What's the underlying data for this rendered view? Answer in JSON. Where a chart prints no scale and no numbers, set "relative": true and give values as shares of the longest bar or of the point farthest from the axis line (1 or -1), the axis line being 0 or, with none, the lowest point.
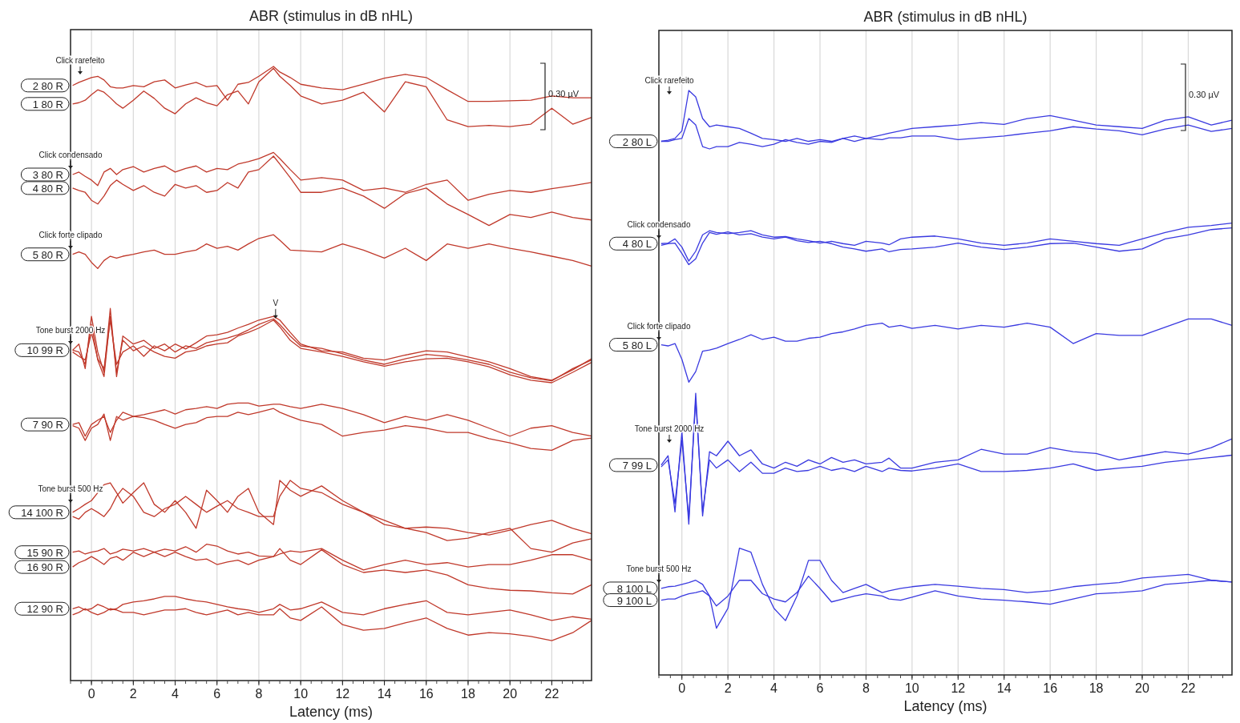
{
  "chart_data": [
    {
      "type": "line",
      "title": "ABR (stimulus in dB nHL)",
      "xlabel": "Latency (ms)",
      "relative": true,
      "grid": "x",
      "xlim": [
        -1,
        23.9
      ],
      "xticks": [
        0,
        2,
        4,
        6,
        8,
        10,
        12,
        14,
        16,
        18,
        20,
        22
      ],
      "x": [
        -0.9,
        -0.6,
        -0.3,
        0,
        0.3,
        0.6,
        0.9,
        1.2,
        1.5,
        2,
        2.5,
        3,
        3.5,
        4,
        4.5,
        5,
        5.5,
        6,
        6.5,
        7,
        7.5,
        8,
        8.7,
        9,
        9.5,
        10,
        11,
        12,
        13,
        14,
        15,
        16,
        17,
        18,
        19,
        20,
        21,
        22,
        23,
        23.9
      ],
      "series": [
        {
          "name": "2 80 R",
          "color": "#c0392b",
          "values": [
            0.969,
            0.974,
            0.978,
            0.982,
            0.984,
            0.978,
            0.967,
            0.965,
            0.965,
            0.969,
            0.967,
            0.975,
            0.978,
            0.965,
            0.97,
            0.974,
            0.967,
            0.969,
            0.945,
            0.971,
            0.974,
            0.984,
            1.0,
            0.991,
            0.982,
            0.971,
            0.965,
            0.962,
            0.971,
            0.981,
            0.987,
            0.982,
            0.962,
            0.943,
            0.943,
            0.944,
            0.945,
            0.952,
            0.949,
            0.949
          ]
        },
        {
          "name": "1 80 R",
          "color": "#c0392b",
          "values": [
            0.939,
            0.941,
            0.945,
            0.954,
            0.962,
            0.958,
            0.949,
            0.939,
            0.932,
            0.945,
            0.96,
            0.948,
            0.932,
            0.923,
            0.939,
            0.949,
            0.941,
            0.936,
            0.954,
            0.96,
            0.939,
            0.975,
            0.997,
            0.984,
            0.969,
            0.952,
            0.939,
            0.945,
            0.958,
            0.926,
            0.975,
            0.967,
            0.913,
            0.902,
            0.904,
            0.902,
            0.906,
            0.932,
            0.906,
            0.917
          ]
        },
        {
          "name": "3 80 R",
          "color": "#c0392b",
          "values": [
            0.824,
            0.828,
            0.821,
            0.815,
            0.806,
            0.828,
            0.834,
            0.824,
            0.832,
            0.837,
            0.828,
            0.834,
            0.838,
            0.828,
            0.834,
            0.838,
            0.828,
            0.834,
            0.832,
            0.841,
            0.845,
            0.85,
            0.86,
            0.85,
            0.832,
            0.815,
            0.819,
            0.815,
            0.798,
            0.802,
            0.795,
            0.808,
            0.815,
            0.782,
            0.792,
            0.798,
            0.795,
            0.801,
            0.806,
            0.811
          ]
        },
        {
          "name": "4 80 R",
          "color": "#c0392b",
          "values": [
            0.802,
            0.798,
            0.795,
            0.782,
            0.776,
            0.789,
            0.806,
            0.815,
            0.808,
            0.798,
            0.806,
            0.795,
            0.789,
            0.808,
            0.802,
            0.806,
            0.795,
            0.798,
            0.811,
            0.802,
            0.828,
            0.832,
            0.854,
            0.841,
            0.819,
            0.795,
            0.795,
            0.802,
            0.789,
            0.769,
            0.793,
            0.802,
            0.776,
            0.759,
            0.741,
            0.759,
            0.754,
            0.763,
            0.754,
            0.75
          ]
        },
        {
          "name": "5 80 R",
          "color": "#c0392b",
          "values": [
            0.694,
            0.698,
            0.694,
            0.681,
            0.671,
            0.684,
            0.691,
            0.688,
            0.691,
            0.694,
            0.698,
            0.701,
            0.694,
            0.694,
            0.698,
            0.701,
            0.711,
            0.704,
            0.707,
            0.701,
            0.711,
            0.72,
            0.726,
            0.717,
            0.701,
            0.7,
            0.698,
            0.711,
            0.701,
            0.688,
            0.704,
            0.684,
            0.711,
            0.704,
            0.711,
            0.704,
            0.698,
            0.691,
            0.684,
            0.675
          ]
        },
        {
          "name": "10 99 R",
          "color": "#c0392b",
          "values": [
            0.538,
            0.548,
            0.508,
            0.593,
            0.535,
            0.502,
            0.606,
            0.495,
            0.561,
            0.548,
            0.554,
            0.541,
            0.548,
            0.535,
            0.545,
            0.541,
            0.55,
            0.554,
            0.558,
            0.563,
            0.571,
            0.58,
            0.589,
            0.58,
            0.561,
            0.545,
            0.541,
            0.532,
            0.522,
            0.515,
            0.524,
            0.531,
            0.528,
            0.522,
            0.515,
            0.502,
            0.493,
            0.488,
            0.508,
            0.522
          ]
        },
        {
          "color": "#c0392b",
          "values": [
            0.538,
            0.535,
            0.515,
            0.58,
            0.522,
            0.495,
            0.593,
            0.502,
            0.554,
            0.537,
            0.545,
            0.535,
            0.528,
            0.525,
            0.535,
            0.538,
            0.545,
            0.548,
            0.55,
            0.561,
            0.567,
            0.574,
            0.587,
            0.576,
            0.554,
            0.541,
            0.535,
            0.528,
            0.519,
            0.512,
            0.519,
            0.524,
            0.525,
            0.519,
            0.511,
            0.498,
            0.489,
            0.485,
            0.502,
            0.518
          ]
        },
        {
          "color": "#c0392b",
          "values": [
            0.535,
            0.528,
            0.522,
            0.567,
            0.524,
            0.508,
            0.587,
            0.515,
            0.535,
            0.545,
            0.528,
            0.545,
            0.537,
            0.548,
            0.54,
            0.55,
            0.561,
            0.563,
            0.567,
            0.574,
            0.58,
            0.587,
            0.593,
            0.587,
            0.567,
            0.548,
            0.537,
            0.535,
            0.525,
            0.522,
            0.53,
            0.537,
            0.535,
            0.527,
            0.519,
            0.508,
            0.495,
            0.489,
            0.506,
            0.524
          ]
        },
        {
          "name": "7 90 R",
          "color": "#c0392b",
          "values": [
            0.417,
            0.42,
            0.398,
            0.417,
            0.424,
            0.43,
            0.404,
            0.424,
            0.437,
            0.43,
            0.433,
            0.437,
            0.441,
            0.434,
            0.441,
            0.443,
            0.446,
            0.443,
            0.45,
            0.452,
            0.452,
            0.447,
            0.45,
            0.45,
            0.446,
            0.443,
            0.45,
            0.443,
            0.433,
            0.42,
            0.43,
            0.424,
            0.433,
            0.424,
            0.411,
            0.398,
            0.411,
            0.415,
            0.404,
            0.398
          ]
        },
        {
          "color": "#c0392b",
          "values": [
            0.415,
            0.411,
            0.391,
            0.411,
            0.417,
            0.434,
            0.391,
            0.43,
            0.424,
            0.43,
            0.428,
            0.424,
            0.417,
            0.411,
            0.417,
            0.42,
            0.428,
            0.43,
            0.43,
            0.437,
            0.433,
            0.437,
            0.443,
            0.437,
            0.43,
            0.424,
            0.417,
            0.398,
            0.404,
            0.408,
            0.415,
            0.411,
            0.404,
            0.404,
            0.394,
            0.387,
            0.378,
            0.375,
            0.391,
            0.395
          ]
        },
        {
          "name": "14 100 R",
          "color": "#c0392b",
          "values": [
            0.274,
            0.28,
            0.287,
            0.293,
            0.306,
            0.319,
            0.322,
            0.306,
            0.289,
            0.306,
            0.322,
            0.287,
            0.274,
            0.293,
            0.274,
            0.248,
            0.31,
            0.293,
            0.274,
            0.3,
            0.313,
            0.274,
            0.254,
            0.326,
            0.31,
            0.3,
            0.317,
            0.293,
            0.274,
            0.261,
            0.248,
            0.25,
            0.248,
            0.241,
            0.237,
            0.245,
            0.254,
            0.261,
            0.248,
            0.239
          ]
        },
        {
          "color": "#c0392b",
          "values": [
            0.267,
            0.263,
            0.274,
            0.28,
            0.274,
            0.267,
            0.28,
            0.3,
            0.313,
            0.3,
            0.274,
            0.267,
            0.28,
            0.287,
            0.3,
            0.287,
            0.274,
            0.284,
            0.293,
            0.28,
            0.274,
            0.267,
            0.267,
            0.3,
            0.326,
            0.313,
            0.306,
            0.287,
            0.274,
            0.254,
            0.248,
            0.241,
            0.228,
            0.232,
            0.241,
            0.248,
            0.215,
            0.209,
            0.224,
            0.231
          ]
        },
        {
          "name": "15 90 R",
          "color": "#c0392b",
          "values": [
            0.209,
            0.211,
            0.206,
            0.209,
            0.211,
            0.215,
            0.206,
            0.209,
            0.214,
            0.211,
            0.215,
            0.209,
            0.214,
            0.211,
            0.218,
            0.209,
            0.222,
            0.219,
            0.211,
            0.206,
            0.209,
            0.203,
            0.202,
            0.206,
            0.211,
            0.209,
            0.215,
            0.196,
            0.18,
            0.189,
            0.196,
            0.189,
            0.192,
            0.185,
            0.189,
            0.189,
            0.196,
            0.205,
            0.205,
            0.196
          ]
        },
        {
          "name": "16 90 R",
          "color": "#c0392b",
          "values": [
            0.185,
            0.192,
            0.196,
            0.202,
            0.196,
            0.189,
            0.199,
            0.202,
            0.196,
            0.209,
            0.202,
            0.209,
            0.202,
            0.209,
            0.202,
            0.196,
            0.198,
            0.189,
            0.193,
            0.196,
            0.189,
            0.196,
            0.202,
            0.215,
            0.196,
            0.189,
            0.213,
            0.189,
            0.176,
            0.18,
            0.176,
            0.18,
            0.172,
            0.156,
            0.15,
            0.147,
            0.146,
            0.143,
            0.141,
            0.156
          ]
        },
        {
          "name": "12 90 R",
          "color": "#c0392b",
          "values": [
            0.117,
            0.12,
            0.115,
            0.117,
            0.124,
            0.12,
            0.115,
            0.117,
            0.124,
            0.128,
            0.13,
            0.133,
            0.137,
            0.137,
            0.133,
            0.13,
            0.128,
            0.124,
            0.12,
            0.117,
            0.115,
            0.111,
            0.117,
            0.124,
            0.115,
            0.117,
            0.128,
            0.111,
            0.107,
            0.117,
            0.124,
            0.13,
            0.111,
            0.107,
            0.111,
            0.115,
            0.107,
            0.098,
            0.104,
            0.1
          ]
        },
        {
          "color": "#c0392b",
          "values": [
            0.107,
            0.111,
            0.117,
            0.111,
            0.107,
            0.111,
            0.117,
            0.115,
            0.111,
            0.111,
            0.107,
            0.111,
            0.115,
            0.115,
            0.117,
            0.111,
            0.107,
            0.111,
            0.115,
            0.107,
            0.111,
            0.107,
            0.107,
            0.117,
            0.102,
            0.098,
            0.12,
            0.091,
            0.082,
            0.085,
            0.094,
            0.102,
            0.085,
            0.074,
            0.078,
            0.076,
            0.072,
            0.065,
            0.078,
            0.098
          ]
        }
      ],
      "annotations": [
        "Click rarefeito",
        "Click condensado",
        "Click forte clipado",
        "Tone burst 2000 Hz",
        {
          "text": "V",
          "x": 8.8,
          "y": 0.587
        },
        "Tone burst 500 Hz",
        "0.30 µV"
      ]
    },
    {
      "type": "line",
      "title": "ABR (stimulus in dB nHL)",
      "xlabel": "Latency (ms)",
      "relative": true,
      "grid": "x",
      "xlim": [
        -1,
        23.9
      ],
      "xticks": [
        0,
        2,
        4,
        6,
        8,
        10,
        12,
        14,
        16,
        18,
        20,
        22
      ],
      "x": [
        -0.9,
        -0.6,
        -0.3,
        0,
        0.3,
        0.6,
        0.9,
        1.2,
        1.5,
        2,
        2.5,
        3,
        3.5,
        4,
        4.5,
        5,
        5.5,
        6,
        6.5,
        7,
        7.5,
        8,
        8.7,
        9,
        9.5,
        10,
        11,
        12,
        13,
        14,
        15,
        16,
        17,
        18,
        19,
        20,
        21,
        22,
        23,
        23.9
      ],
      "series": [
        {
          "name": "2 80 L",
          "color": "#3a3ae0",
          "values": [
            0.913,
            0.915,
            0.918,
            0.931,
            1.0,
            0.989,
            0.952,
            0.938,
            0.941,
            0.938,
            0.935,
            0.927,
            0.918,
            0.916,
            0.913,
            0.918,
            0.913,
            0.916,
            0.913,
            0.918,
            0.922,
            0.918,
            0.924,
            0.927,
            0.931,
            0.935,
            0.938,
            0.941,
            0.945,
            0.942,
            0.952,
            0.957,
            0.949,
            0.941,
            0.938,
            0.935,
            0.949,
            0.955,
            0.941,
            0.949
          ]
        },
        {
          "color": "#3a3ae0",
          "values": [
            0.913,
            0.913,
            0.916,
            0.918,
            0.952,
            0.941,
            0.904,
            0.9,
            0.904,
            0.904,
            0.911,
            0.908,
            0.904,
            0.908,
            0.916,
            0.911,
            0.908,
            0.913,
            0.911,
            0.918,
            0.913,
            0.918,
            0.916,
            0.919,
            0.919,
            0.922,
            0.922,
            0.916,
            0.919,
            0.922,
            0.927,
            0.931,
            0.938,
            0.934,
            0.931,
            0.924,
            0.934,
            0.941,
            0.93,
            0.935
          ]
        },
        {
          "name": "4 80 L",
          "color": "#3a3ae0",
          "values": [
            0.738,
            0.739,
            0.746,
            0.732,
            0.708,
            0.725,
            0.753,
            0.76,
            0.757,
            0.755,
            0.757,
            0.76,
            0.753,
            0.749,
            0.75,
            0.746,
            0.743,
            0.739,
            0.742,
            0.738,
            0.735,
            0.742,
            0.739,
            0.736,
            0.746,
            0.749,
            0.751,
            0.746,
            0.739,
            0.735,
            0.739,
            0.746,
            0.742,
            0.738,
            0.735,
            0.746,
            0.757,
            0.766,
            0.769,
            0.773
          ]
        },
        {
          "color": "#3a3ae0",
          "values": [
            0.735,
            0.738,
            0.739,
            0.721,
            0.702,
            0.712,
            0.739,
            0.757,
            0.754,
            0.758,
            0.753,
            0.755,
            0.749,
            0.746,
            0.749,
            0.743,
            0.74,
            0.742,
            0.738,
            0.732,
            0.729,
            0.725,
            0.729,
            0.724,
            0.728,
            0.729,
            0.732,
            0.739,
            0.732,
            0.728,
            0.732,
            0.738,
            0.739,
            0.732,
            0.725,
            0.729,
            0.746,
            0.753,
            0.762,
            0.765
          ]
        },
        {
          "name": "5 80 L",
          "color": "#3a3ae0",
          "values": [
            0.565,
            0.563,
            0.567,
            0.54,
            0.501,
            0.519,
            0.554,
            0.556,
            0.559,
            0.567,
            0.574,
            0.582,
            0.574,
            0.578,
            0.571,
            0.571,
            0.576,
            0.578,
            0.584,
            0.587,
            0.592,
            0.598,
            0.602,
            0.595,
            0.598,
            0.593,
            0.598,
            0.592,
            0.598,
            0.595,
            0.602,
            0.595,
            0.567,
            0.584,
            0.581,
            0.581,
            0.595,
            0.609,
            0.609,
            0.598
          ]
        },
        {
          "name": "7 99 L",
          "color": "#3a3ae0",
          "values": [
            0.359,
            0.375,
            0.279,
            0.416,
            0.258,
            0.482,
            0.272,
            0.382,
            0.375,
            0.4,
            0.375,
            0.385,
            0.361,
            0.354,
            0.364,
            0.357,
            0.368,
            0.361,
            0.372,
            0.364,
            0.368,
            0.361,
            0.364,
            0.371,
            0.354,
            0.354,
            0.364,
            0.368,
            0.386,
            0.378,
            0.378,
            0.389,
            0.382,
            0.379,
            0.368,
            0.375,
            0.382,
            0.378,
            0.389,
            0.404
          ]
        },
        {
          "color": "#3a3ae0",
          "values": [
            0.356,
            0.368,
            0.293,
            0.402,
            0.268,
            0.471,
            0.279,
            0.368,
            0.354,
            0.368,
            0.348,
            0.364,
            0.345,
            0.345,
            0.354,
            0.348,
            0.35,
            0.357,
            0.35,
            0.354,
            0.348,
            0.357,
            0.348,
            0.354,
            0.35,
            0.349,
            0.354,
            0.361,
            0.348,
            0.348,
            0.35,
            0.354,
            0.361,
            0.35,
            0.354,
            0.357,
            0.364,
            0.368,
            0.372,
            0.376
          ]
        },
        {
          "name": "8 100 L",
          "color": "#3a3ae0",
          "values": [
            0.148,
            0.151,
            0.152,
            0.155,
            0.158,
            0.162,
            0.155,
            0.135,
            0.08,
            0.114,
            0.217,
            0.21,
            0.155,
            0.114,
            0.093,
            0.135,
            0.196,
            0.196,
            0.162,
            0.141,
            0.148,
            0.155,
            0.141,
            0.144,
            0.148,
            0.151,
            0.155,
            0.152,
            0.148,
            0.146,
            0.141,
            0.144,
            0.151,
            0.155,
            0.158,
            0.166,
            0.169,
            0.172,
            0.162,
            0.159
          ]
        },
        {
          "name": "9 100 L",
          "color": "#3a3ae0",
          "values": [
            0.128,
            0.13,
            0.13,
            0.135,
            0.139,
            0.141,
            0.144,
            0.135,
            0.118,
            0.135,
            0.162,
            0.162,
            0.139,
            0.13,
            0.125,
            0.141,
            0.169,
            0.148,
            0.125,
            0.13,
            0.135,
            0.139,
            0.135,
            0.13,
            0.128,
            0.133,
            0.144,
            0.135,
            0.13,
            0.128,
            0.125,
            0.121,
            0.13,
            0.139,
            0.141,
            0.144,
            0.155,
            0.158,
            0.162,
            0.159
          ]
        }
      ],
      "annotations": [
        "Click rarefeito",
        "Click condensado",
        "Click forte clipado",
        "Tone burst 2000 Hz",
        "Tone burst 500 Hz",
        "0.30 µV"
      ]
    }
  ]
}
